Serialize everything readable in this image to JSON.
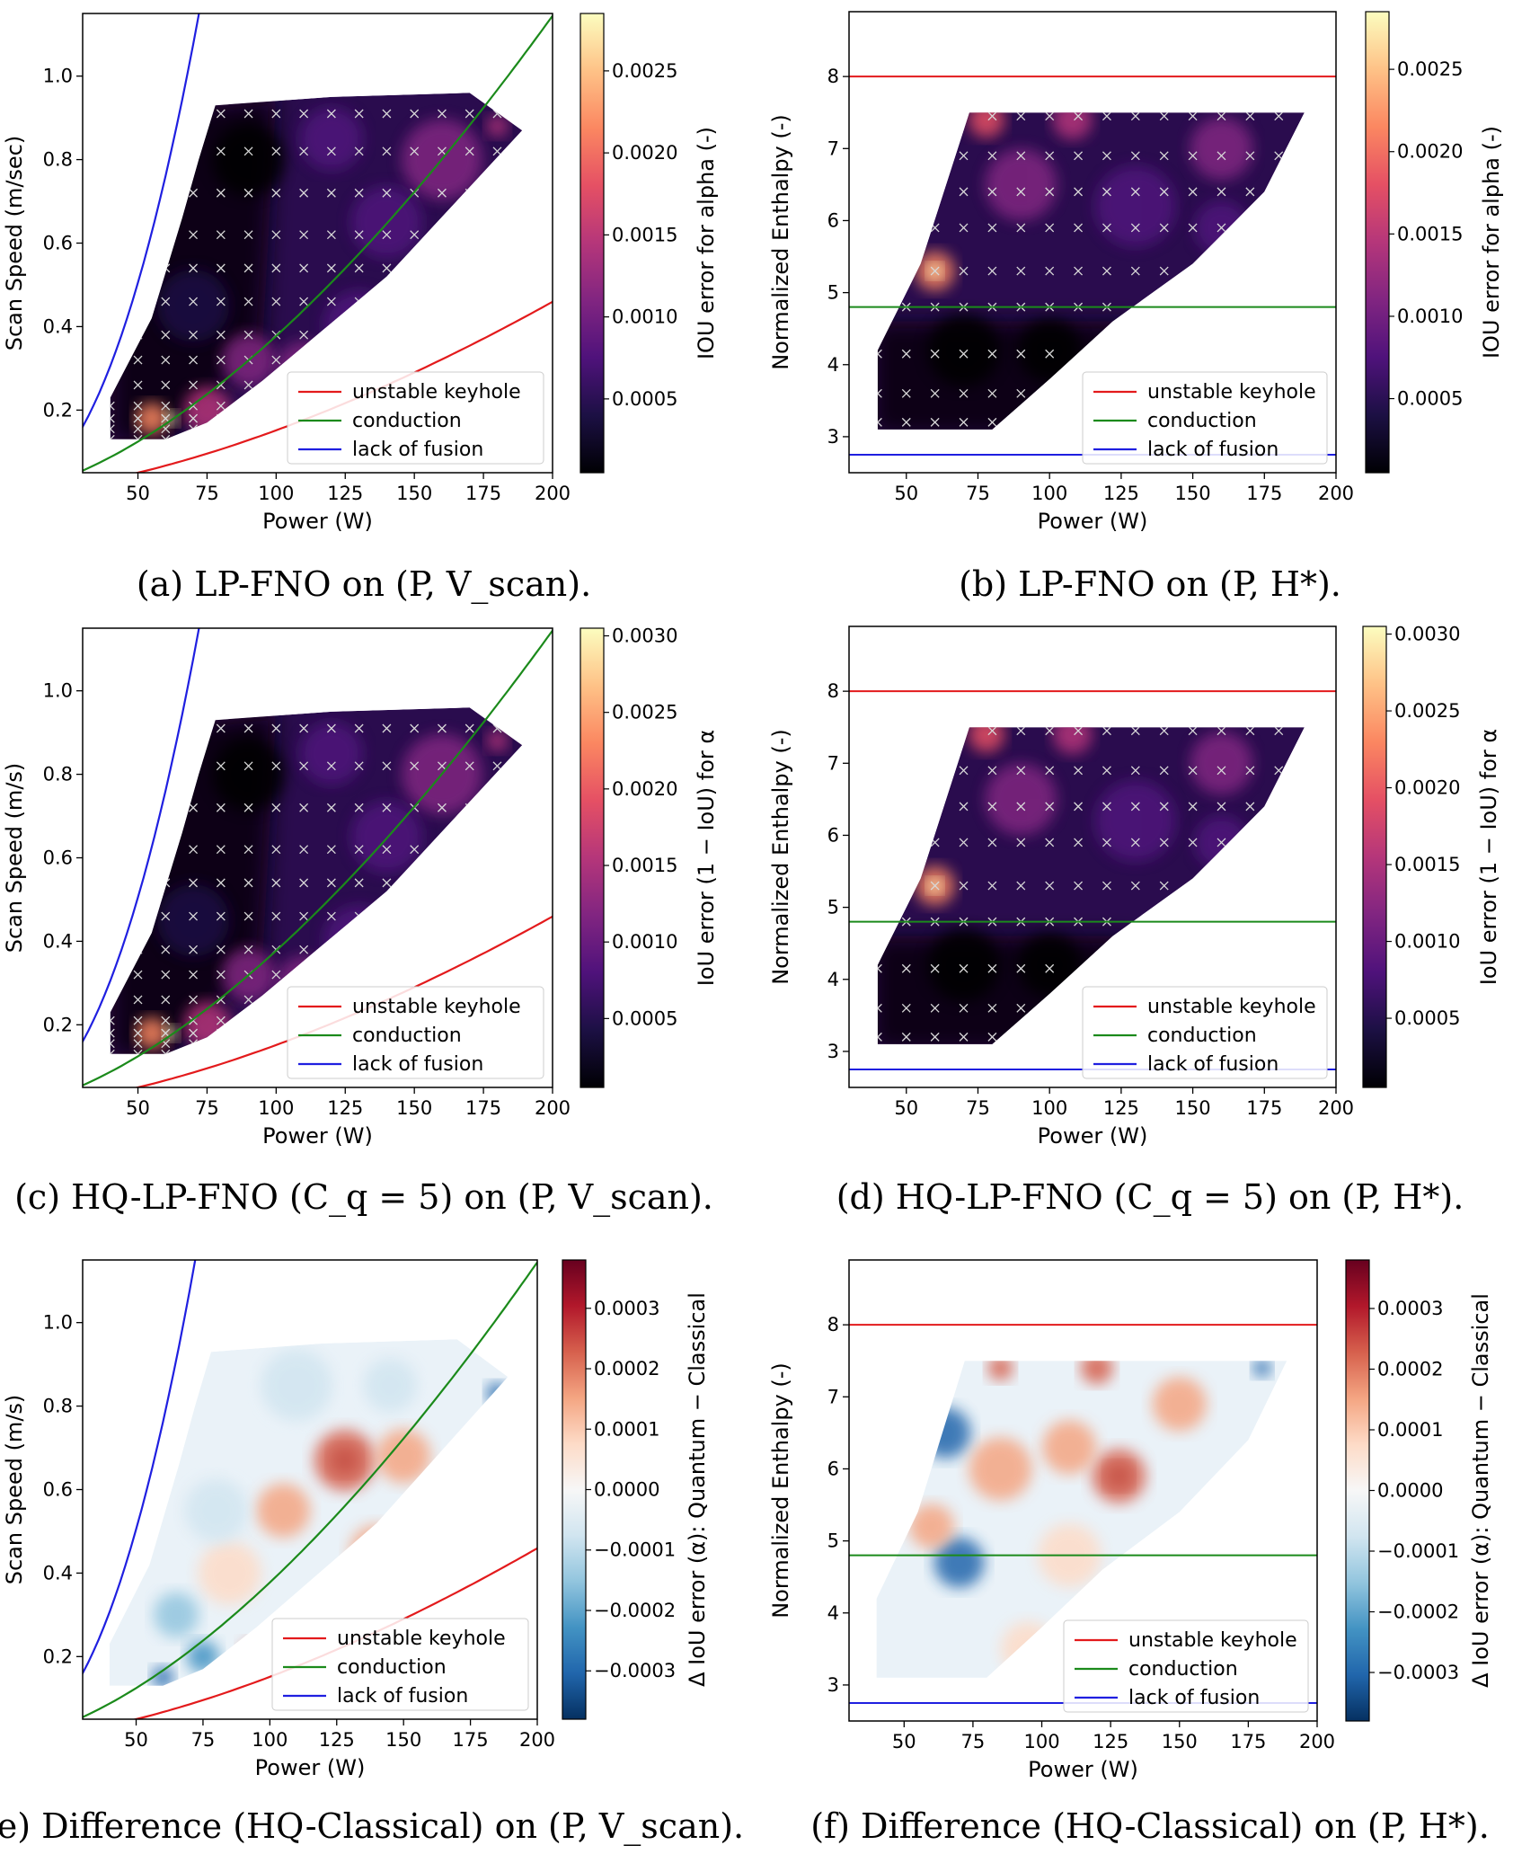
{
  "figure": {
    "colormap_error": "magma",
    "colormap_diff": "RdBu_r",
    "line_colors": {
      "unstable keyhole": "#e31a1c",
      "conduction": "#1b8a1b",
      "lack of fusion": "#1f1fe0"
    },
    "marker_color": "#d8d8d8"
  },
  "chart_data": [
    {
      "id": "a",
      "type": "heatmap",
      "space": "PV",
      "caption": "(a) LP-FNO on (P, V_scan).",
      "xlabel": "Power (W)",
      "ylabel": "Scan Speed (m/sec)",
      "xlim": [
        30,
        200
      ],
      "ylim": [
        0.05,
        1.15
      ],
      "xticks": [
        "50",
        "75",
        "100",
        "125",
        "150",
        "175",
        "200"
      ],
      "yticks": [
        "0.2",
        "0.4",
        "0.6",
        "0.8",
        "1.0"
      ],
      "colorbar_label": "IOU error for alpha (-)",
      "colormap": "magma",
      "clim": [
        5e-05,
        0.00285
      ],
      "colorbar_ticks": [
        "0.0005",
        "0.0010",
        "0.0015",
        "0.0020",
        "0.0025"
      ],
      "legend": [
        "unstable keyhole",
        "conduction",
        "lack of fusion"
      ],
      "markers": true
    },
    {
      "id": "b",
      "type": "heatmap",
      "space": "PH",
      "caption": "(b) LP-FNO on (P, H*).",
      "xlabel": "Power (W)",
      "ylabel": "Normalized Enthalpy (-)",
      "xlim": [
        30,
        200
      ],
      "ylim": [
        2.5,
        8.9
      ],
      "xticks": [
        "50",
        "75",
        "100",
        "125",
        "150",
        "175",
        "200"
      ],
      "yticks": [
        "3",
        "4",
        "5",
        "6",
        "7",
        "8"
      ],
      "colorbar_label": "IOU error for alpha (-)",
      "colormap": "magma",
      "clim": [
        5e-05,
        0.00285
      ],
      "colorbar_ticks": [
        "0.0005",
        "0.0010",
        "0.0015",
        "0.0020",
        "0.0025"
      ],
      "hlines": {
        "unstable keyhole": 8.0,
        "conduction": 4.8,
        "lack of fusion": 2.75
      },
      "legend": [
        "unstable keyhole",
        "conduction",
        "lack of fusion"
      ],
      "markers": true
    },
    {
      "id": "c",
      "type": "heatmap",
      "space": "PV",
      "caption": "(c) HQ-LP-FNO (C_q = 5) on (P, V_scan).",
      "xlabel": "Power (W)",
      "ylabel": "Scan Speed (m/s)",
      "xlim": [
        30,
        200
      ],
      "ylim": [
        0.05,
        1.15
      ],
      "xticks": [
        "50",
        "75",
        "100",
        "125",
        "150",
        "175",
        "200"
      ],
      "yticks": [
        "0.2",
        "0.4",
        "0.6",
        "0.8",
        "1.0"
      ],
      "colorbar_label": "IoU error (1 − IoU) for α",
      "colormap": "magma",
      "clim": [
        5e-05,
        0.00305
      ],
      "colorbar_ticks": [
        "0.0005",
        "0.0010",
        "0.0015",
        "0.0020",
        "0.0025",
        "0.0030"
      ],
      "legend": [
        "unstable keyhole",
        "conduction",
        "lack of fusion"
      ],
      "markers": true
    },
    {
      "id": "d",
      "type": "heatmap",
      "space": "PH",
      "caption": "(d) HQ-LP-FNO (C_q = 5) on (P, H*).",
      "xlabel": "Power (W)",
      "ylabel": "Normalized Enthalpy (-)",
      "xlim": [
        30,
        200
      ],
      "ylim": [
        2.5,
        8.9
      ],
      "xticks": [
        "50",
        "75",
        "100",
        "125",
        "150",
        "175",
        "200"
      ],
      "yticks": [
        "3",
        "4",
        "5",
        "6",
        "7",
        "8"
      ],
      "colorbar_label": "IoU error (1 − IoU) for α",
      "colormap": "magma",
      "clim": [
        5e-05,
        0.00305
      ],
      "colorbar_ticks": [
        "0.0005",
        "0.0010",
        "0.0015",
        "0.0020",
        "0.0025",
        "0.0030"
      ],
      "hlines": {
        "unstable keyhole": 8.0,
        "conduction": 4.8,
        "lack of fusion": 2.75
      },
      "legend": [
        "unstable keyhole",
        "conduction",
        "lack of fusion"
      ],
      "markers": true
    },
    {
      "id": "e",
      "type": "heatmap",
      "space": "PV",
      "caption": "(e) Difference (HQ-Classical) on (P, V_scan).",
      "xlabel": "Power (W)",
      "ylabel": "Scan Speed (m/s)",
      "xlim": [
        30,
        200
      ],
      "ylim": [
        0.05,
        1.15
      ],
      "xticks": [
        "50",
        "75",
        "100",
        "125",
        "150",
        "175",
        "200"
      ],
      "yticks": [
        "0.2",
        "0.4",
        "0.6",
        "0.8",
        "1.0"
      ],
      "colorbar_label": "Δ IoU error (α): Quantum − Classical",
      "colormap": "RdBu_r",
      "clim": [
        -0.00038,
        0.00038
      ],
      "colorbar_ticks": [
        "−0.0003",
        "−0.0002",
        "−0.0001",
        "0.0000",
        "0.0001",
        "0.0002",
        "0.0003"
      ],
      "legend": [
        "unstable keyhole",
        "conduction",
        "lack of fusion"
      ],
      "markers": false
    },
    {
      "id": "f",
      "type": "heatmap",
      "space": "PH",
      "caption": "(f) Difference (HQ-Classical) on (P, H*).",
      "xlabel": "Power (W)",
      "ylabel": "Normalized Enthalpy (-)",
      "xlim": [
        30,
        200
      ],
      "ylim": [
        2.5,
        8.9
      ],
      "xticks": [
        "50",
        "75",
        "100",
        "125",
        "150",
        "175",
        "200"
      ],
      "yticks": [
        "3",
        "4",
        "5",
        "6",
        "7",
        "8"
      ],
      "colorbar_label": "Δ IoU error (α): Quantum − Classical",
      "colormap": "RdBu_r",
      "clim": [
        -0.00038,
        0.00038
      ],
      "colorbar_ticks": [
        "−0.0003",
        "−0.0002",
        "−0.0001",
        "0.0000",
        "0.0001",
        "0.0002",
        "0.0003"
      ],
      "hlines": {
        "unstable keyhole": 8.0,
        "conduction": 4.8,
        "lack of fusion": 2.75
      },
      "legend": [
        "unstable keyhole",
        "conduction",
        "lack of fusion"
      ],
      "markers": false
    }
  ]
}
